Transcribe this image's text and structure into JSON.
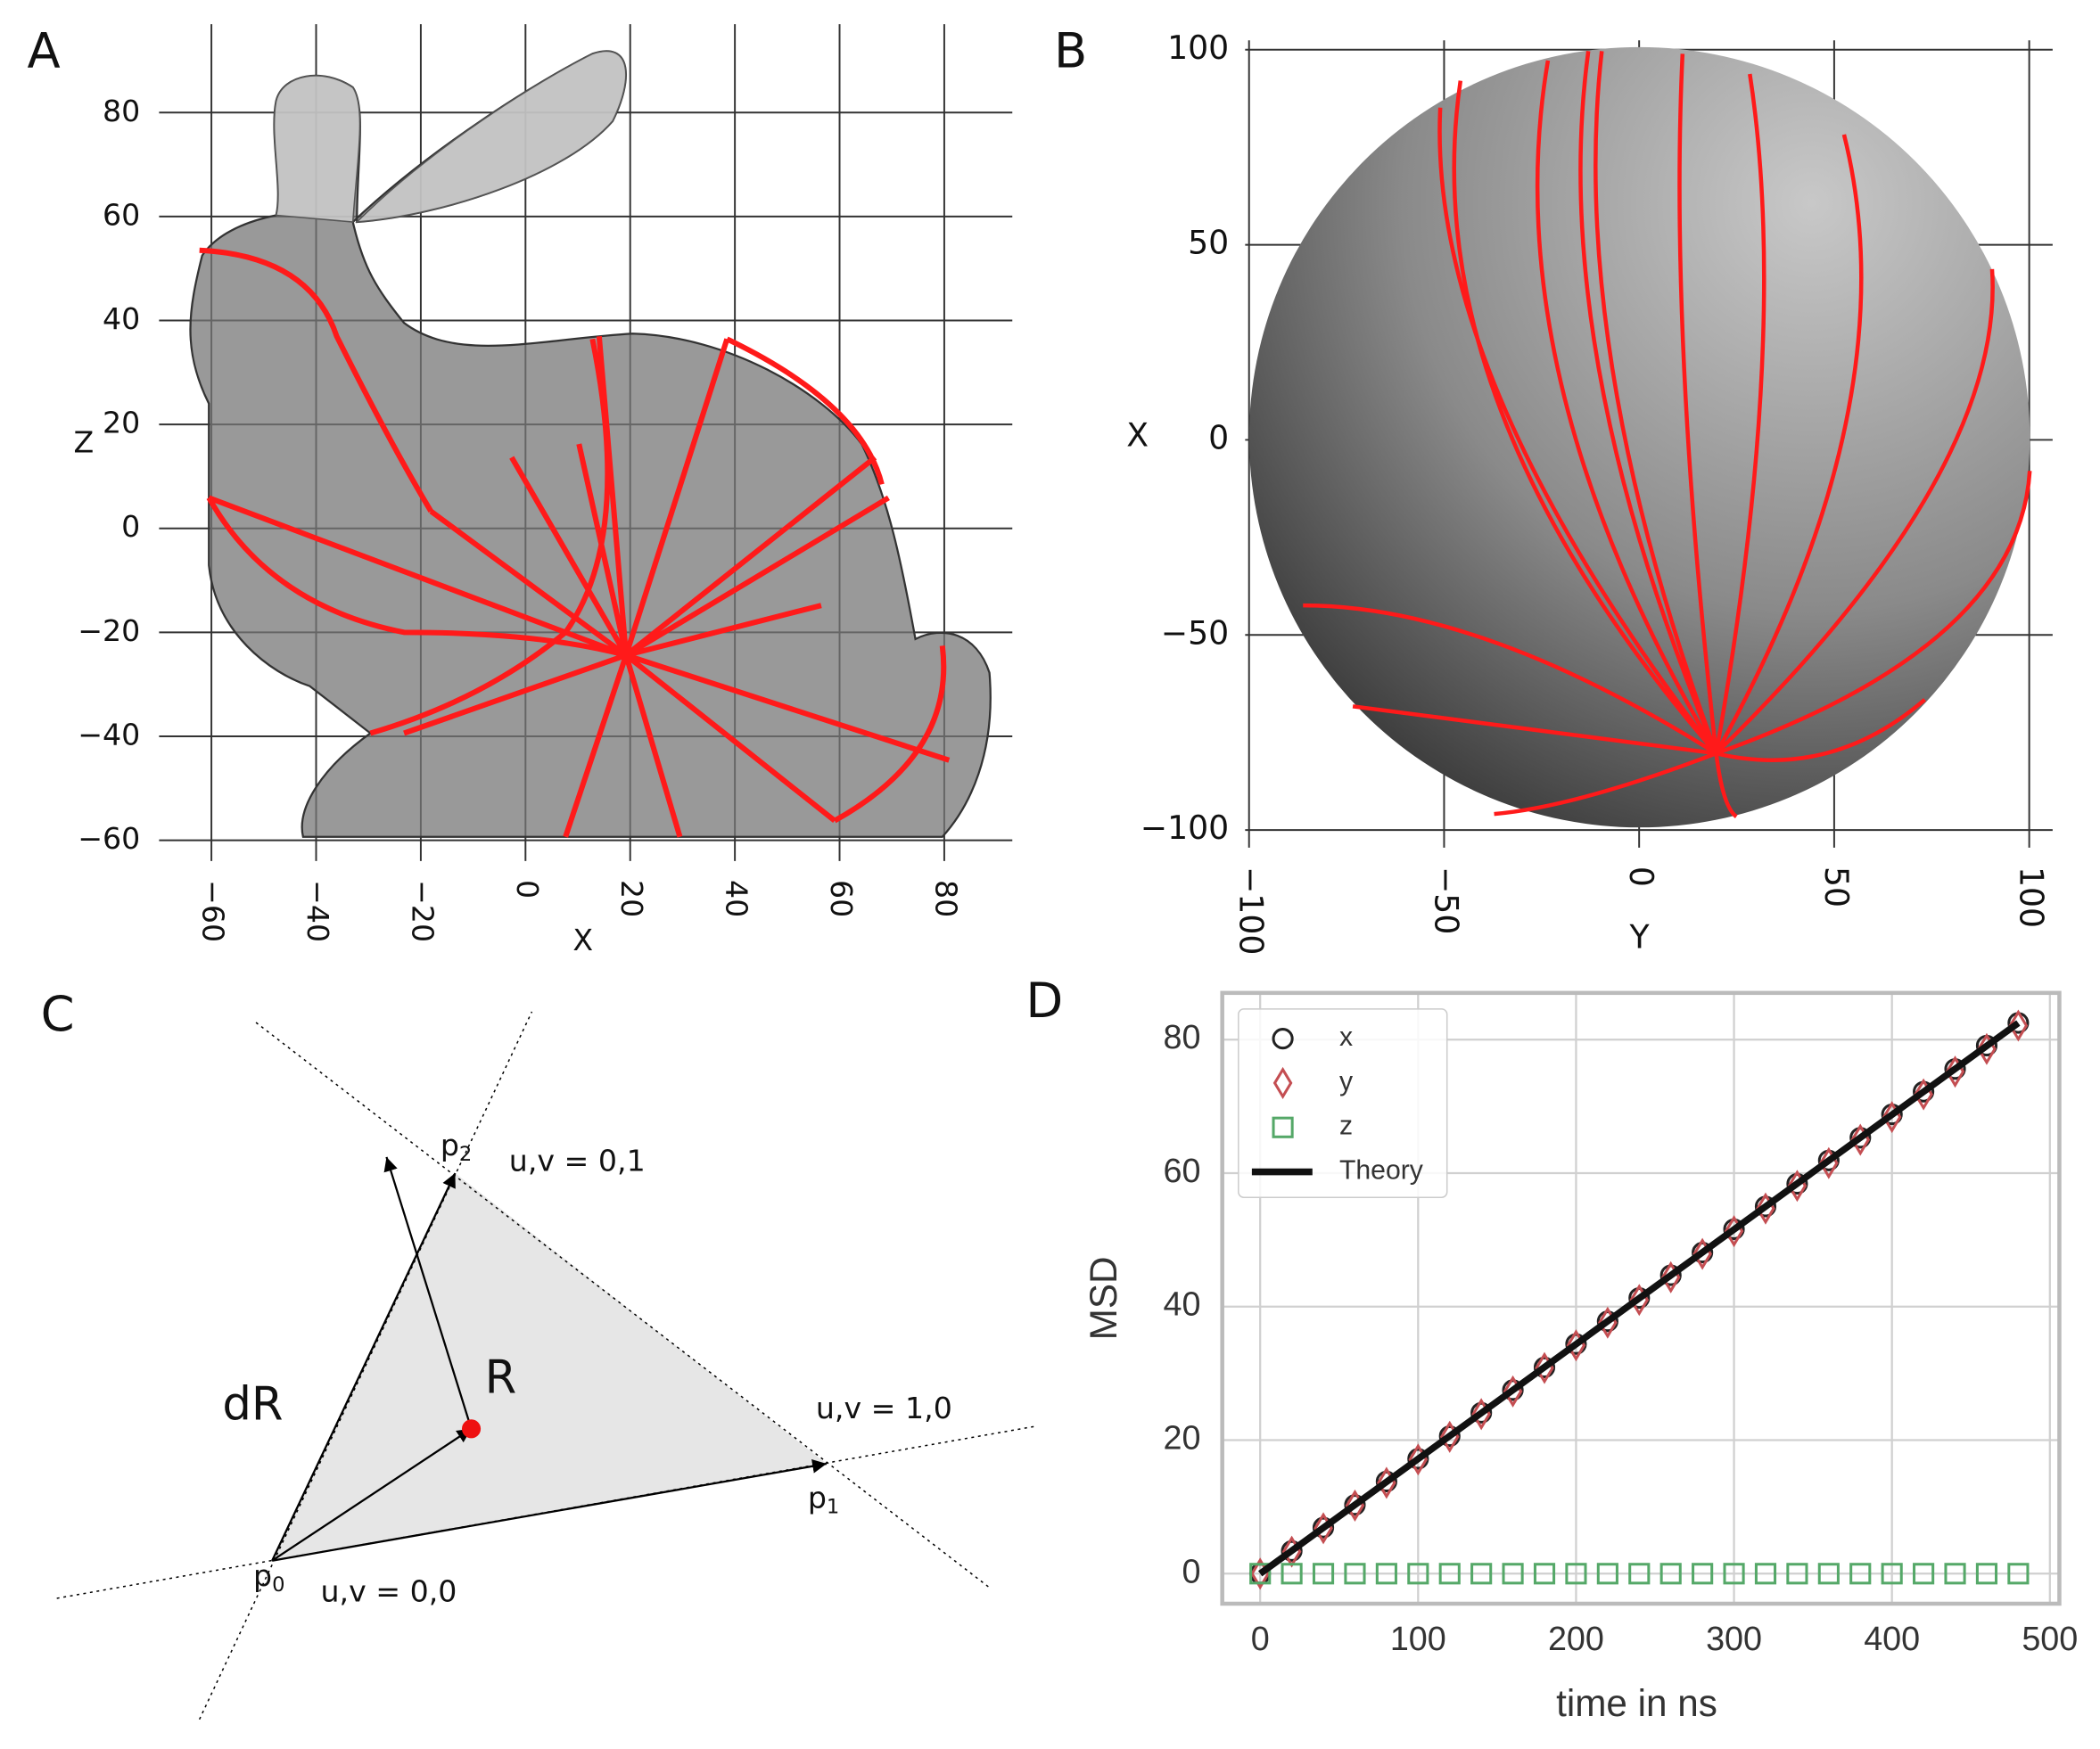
{
  "panel_labels": [
    "A",
    "B",
    "C",
    "D"
  ],
  "chart_data": [
    {
      "type": "surface",
      "xlabel": "X",
      "ylabel": "Z",
      "xlim": [
        -70,
        93
      ],
      "ylim": [
        -64,
        97
      ],
      "xticks": [
        {
          "value": -60,
          "label": "−60"
        },
        {
          "value": -40,
          "label": "−40"
        },
        {
          "value": -20,
          "label": "−20"
        },
        0,
        20,
        40,
        60,
        80
      ],
      "yticks": [
        {
          "value": -60,
          "label": "−60"
        },
        {
          "value": -40,
          "label": "−40"
        },
        {
          "value": -20,
          "label": "−20"
        },
        0,
        20,
        40,
        60,
        80
      ],
      "grid": true
    },
    {
      "type": "surface",
      "xlabel": "Y",
      "ylabel": "X",
      "xlim": [
        -101,
        106
      ],
      "ylim": [
        -104.5,
        102.4
      ],
      "xticks": [
        {
          "value": -100,
          "label": "−100"
        },
        {
          "value": -50,
          "label": "−50"
        },
        0,
        50,
        100
      ],
      "yticks": [
        {
          "value": -100,
          "label": "−100"
        },
        {
          "value": -50,
          "label": "−50"
        },
        0,
        50,
        100
      ],
      "grid": true
    },
    {
      "type": "scatter",
      "xlabel": "time in ns",
      "ylabel": "MSD",
      "xlim": [
        -24,
        506
      ],
      "ylim": [
        -4.5,
        87
      ],
      "xticks": [
        0,
        100,
        200,
        300,
        400,
        500
      ],
      "yticks": [
        0,
        20,
        40,
        60,
        80
      ],
      "grid": true,
      "legend": "upper left",
      "x": [
        0,
        20,
        40,
        60,
        80,
        100,
        120,
        140,
        160,
        180,
        200,
        220,
        240,
        260,
        280,
        300,
        320,
        340,
        360,
        380,
        400,
        420,
        440,
        460,
        480
      ],
      "series": [
        {
          "name": "x",
          "color": "#222222",
          "marker": "circle",
          "values": [
            0,
            3.4,
            6.9,
            10.3,
            13.8,
            17.2,
            20.6,
            24.1,
            27.5,
            30.9,
            34.4,
            37.8,
            41.3,
            44.7,
            48.1,
            51.6,
            55,
            58.4,
            61.9,
            65.3,
            68.8,
            72.2,
            75.6,
            79.1,
            82.5
          ]
        },
        {
          "name": "y",
          "color": "#c44e52",
          "marker": "diamond",
          "values": [
            0,
            3.3,
            6.8,
            10.2,
            13.6,
            17.1,
            20.5,
            23.9,
            27.3,
            30.8,
            34.2,
            37.6,
            41.0,
            44.4,
            47.9,
            51.3,
            54.7,
            58.1,
            61.5,
            65.0,
            68.4,
            71.8,
            75.2,
            78.6,
            82.1
          ]
        },
        {
          "name": "z",
          "color": "#55a868",
          "marker": "square",
          "values": [
            0,
            0,
            0,
            0,
            0,
            0,
            0,
            0,
            0,
            0,
            0,
            0,
            0,
            0,
            0,
            0,
            0,
            0,
            0,
            0,
            0,
            0,
            0,
            0,
            0
          ]
        },
        {
          "name": "Theory",
          "color": "#111111",
          "marker": "line",
          "x": [
            0,
            480
          ],
          "values": [
            0,
            82.5
          ]
        }
      ]
    }
  ],
  "diagram": {
    "p2": {
      "base": "p",
      "sub": "2"
    },
    "p1": {
      "base": "p",
      "sub": "1"
    },
    "p0": {
      "base": "p",
      "sub": "0"
    },
    "uv01": "u,v = 0,1",
    "uv10": "u,v = 1,0",
    "uv00": "u,v = 0,0",
    "dR": "dR",
    "R": "R"
  }
}
